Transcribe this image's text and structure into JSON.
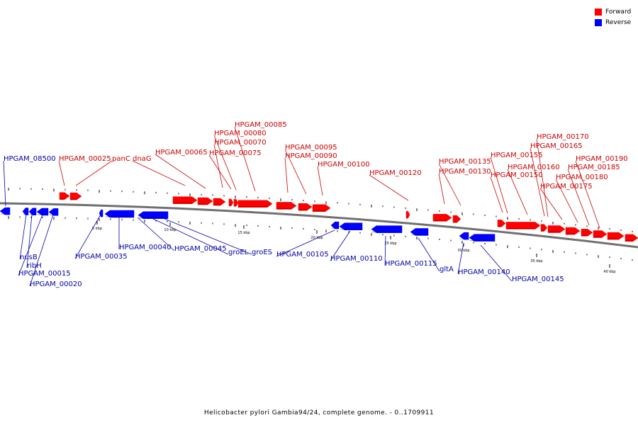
{
  "colors": {
    "forward": "#ff0000",
    "reverse": "#0000ff",
    "backbone": "#808080",
    "forward_label": "#cc0000",
    "reverse_label": "#0000aa"
  },
  "legend": {
    "forward": "Forward",
    "reverse": "Reverse"
  },
  "caption": "Helicobacter pylori Gambia94/24, complete genome. - 0..1709911",
  "scale_labels": [
    "5 kbp",
    "10 kbp",
    "15 kbp",
    "20 kbp",
    "25 kbp",
    "30 kbp",
    "35 kbp",
    "40 kbp"
  ],
  "forward_genes": [
    "HPGAM_00025",
    "panC",
    "dnaG",
    "HPGAM_00065",
    "HPGAM_00070",
    "HPGAM_00075",
    "HPGAM_00080",
    "HPGAM_00085",
    "HPGAM_00090",
    "HPGAM_00095",
    "HPGAM_00100",
    "HPGAM_00120",
    "HPGAM_00130",
    "HPGAM_00135",
    "HPGAM_00150",
    "HPGAM_00155",
    "HPGAM_00160",
    "HPGAM_00165",
    "HPGAM_00170",
    "HPGAM_00175",
    "HPGAM_00180",
    "HPGAM_00185",
    "HPGAM_00190"
  ],
  "reverse_genes": [
    "HPGAM_08500",
    "nusB",
    "ribH",
    "HPGAM_00015",
    "HPGAM_00020",
    "HPGAM_00035",
    "HPGAM_00040",
    "HPGAM_00045",
    "groEL",
    "groES",
    "HPGAM_00105",
    "HPGAM_00110",
    "HPGAM_00115",
    "gltA",
    "HPGAM_00140",
    "HPGAM_00145"
  ]
}
